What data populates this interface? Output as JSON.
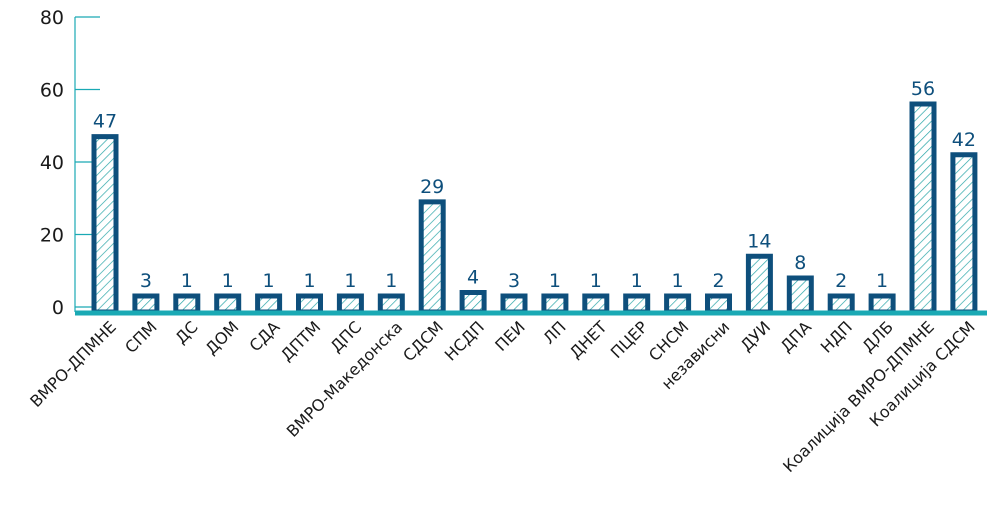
{
  "chart_data": {
    "type": "bar",
    "categories": [
      "ВМРО-ДПМНЕ",
      "СПМ",
      "ДС",
      "ДОМ",
      "СДА",
      "ДПТМ",
      "ДПС",
      "ВМРО-Македонска",
      "СДСМ",
      "НСДП",
      "ПЕИ",
      "ЛП",
      "ДНЕТ",
      "ПЦЕР",
      "СНСМ",
      "независни",
      "ДУИ",
      "ДПА",
      "НДП",
      "ДЛБ",
      "Коалиција ВМРО-ДПМНЕ",
      "Коалиција СДСМ"
    ],
    "values": [
      47,
      3,
      1,
      1,
      1,
      1,
      1,
      1,
      29,
      4,
      3,
      1,
      1,
      1,
      1,
      2,
      14,
      8,
      2,
      1,
      56,
      42
    ],
    "yticks": [
      "0",
      "20",
      "40",
      "60",
      "80"
    ],
    "ylim": [
      0,
      80
    ],
    "title": "",
    "xlabel": "",
    "ylabel": "",
    "grid": false,
    "colors": {
      "bar_stroke": "#0e4f7c",
      "bar_hatch": "#2aa6a8",
      "axis": "#1aa9b4",
      "label": "#0e4f7c"
    }
  }
}
